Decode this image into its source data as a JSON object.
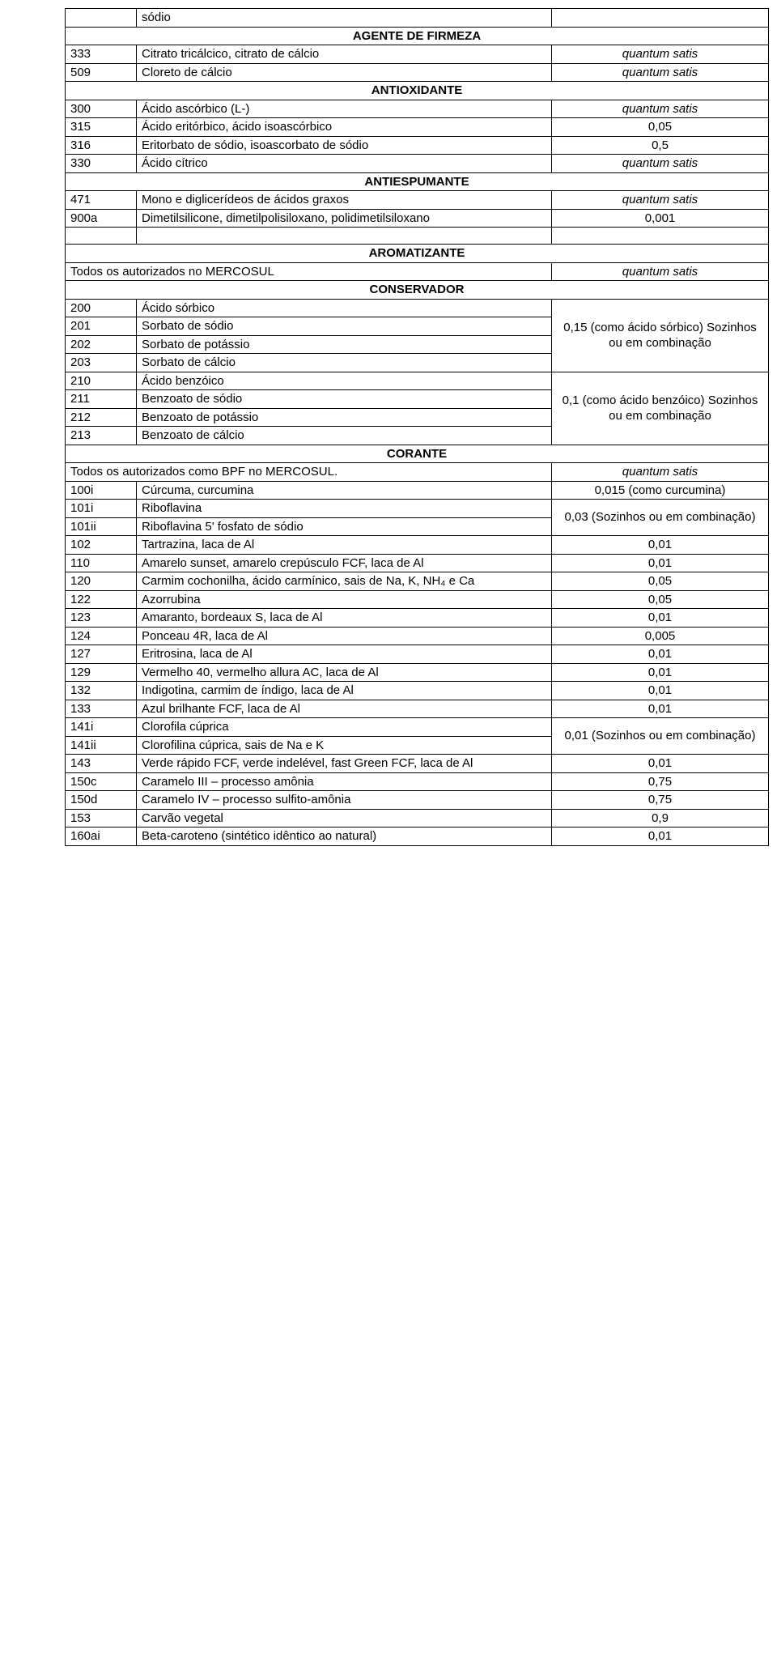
{
  "rows": {
    "r0": {
      "c1": "",
      "c2": "sódio",
      "c3": ""
    },
    "sh1": {
      "label": "AGENTE DE FIRMEZA"
    },
    "r1": {
      "c1": "333",
      "c2": "Citrato tricálcico, citrato de cálcio",
      "c3": "quantum satis"
    },
    "r2": {
      "c1": "509",
      "c2": "Cloreto de cálcio",
      "c3": "quantum satis"
    },
    "sh2": {
      "label": "ANTIOXIDANTE"
    },
    "r3": {
      "c1": "300",
      "c2": "Ácido ascórbico (L-)",
      "c3": "quantum satis"
    },
    "r4": {
      "c1": "315",
      "c2": "Ácido eritórbico, ácido isoascórbico",
      "c3": "0,05"
    },
    "r5": {
      "c1": "316",
      "c2": "Eritorbato de sódio, isoascorbato de sódio",
      "c3": "0,5"
    },
    "r6": {
      "c1": "330",
      "c2": "Ácido cítrico",
      "c3": "quantum satis"
    },
    "sh3": {
      "label": "ANTIESPUMANTE"
    },
    "r7": {
      "c1": "471",
      "c2": "Mono e diglicerídeos de ácidos graxos",
      "c3": "quantum satis"
    },
    "r8": {
      "c1": "900a",
      "c2": "Dimetilsilicone, dimetilpolisiloxano, polidimetilsiloxano",
      "c3": "0,001"
    },
    "sh4": {
      "label": "AROMATIZANTE"
    },
    "r9": {
      "c12": "Todos os autorizados no MERCOSUL",
      "c3": "quantum satis"
    },
    "sh5": {
      "label": "CONSERVADOR"
    },
    "r10": {
      "c1": "200",
      "c2": "Ácido sórbico"
    },
    "r11": {
      "c1": "201",
      "c2": "Sorbato de sódio"
    },
    "r12": {
      "c1": "202",
      "c2": "Sorbato de potássio"
    },
    "r13": {
      "c1": "203",
      "c2": "Sorbato de cálcio"
    },
    "g1": {
      "text": "0,15 (como ácido sórbico) Sozinhos ou em combinação"
    },
    "r14": {
      "c1": "210",
      "c2": "Ácido benzóico"
    },
    "r15": {
      "c1": "211",
      "c2": "Benzoato de sódio"
    },
    "r16": {
      "c1": "212",
      "c2": "Benzoato de potássio"
    },
    "r17": {
      "c1": "213",
      "c2": "Benzoato de cálcio"
    },
    "g2": {
      "text": "0,1 (como ácido benzóico) Sozinhos ou em combinação"
    },
    "sh6": {
      "label": "CORANTE"
    },
    "r18": {
      "c12": "Todos os autorizados como BPF no MERCOSUL.",
      "c3": "quantum satis"
    },
    "r19": {
      "c1": "100i",
      "c2": "Cúrcuma, curcumina",
      "c3": "0,015 (como curcumina)"
    },
    "r20": {
      "c1": "101i",
      "c2": "Riboflavina"
    },
    "r21": {
      "c1": "101ii",
      "c2": "Riboflavina 5' fosfato de sódio"
    },
    "g3": {
      "text": "0,03 (Sozinhos ou em combinação)"
    },
    "r22": {
      "c1": "102",
      "c2": "Tartrazina, laca de Al",
      "c3": "0,01"
    },
    "r23": {
      "c1": "110",
      "c2": "Amarelo sunset, amarelo crepúsculo FCF, laca de Al",
      "c3": "0,01"
    },
    "r24": {
      "c1": "120",
      "c2": "Carmim cochonilha, ácido carmínico, sais de Na, K, NH₄ e Ca",
      "c3": "0,05"
    },
    "r25": {
      "c1": "122",
      "c2": "Azorrubina",
      "c3": "0,05"
    },
    "r26": {
      "c1": "123",
      "c2": "Amaranto, bordeaux S, laca de Al",
      "c3": "0,01"
    },
    "r27": {
      "c1": "124",
      "c2": "Ponceau 4R, laca de Al",
      "c3": "0,005"
    },
    "r28": {
      "c1": "127",
      "c2": "Eritrosina, laca de Al",
      "c3": "0,01"
    },
    "r29": {
      "c1": "129",
      "c2": "Vermelho 40, vermelho allura AC, laca de Al",
      "c3": "0,01"
    },
    "r30": {
      "c1": "132",
      "c2": "Indigotina, carmim de índigo, laca de Al",
      "c3": "0,01"
    },
    "r31": {
      "c1": "133",
      "c2": "Azul brilhante FCF, laca de Al",
      "c3": "0,01"
    },
    "r32": {
      "c1": "141i",
      "c2": "Clorofila cúprica"
    },
    "r33": {
      "c1": "141ii",
      "c2": "Clorofilina cúprica, sais de Na e K"
    },
    "g4": {
      "text": "0,01 (Sozinhos ou em combinação)"
    },
    "r34": {
      "c1": "143",
      "c2": "Verde rápido FCF, verde indelével, fast Green FCF, laca de Al",
      "c3": "0,01"
    },
    "r35": {
      "c1": "150c",
      "c2": "Caramelo III – processo amônia",
      "c3": "0,75"
    },
    "r36": {
      "c1": "150d",
      "c2": "Caramelo IV – processo sulfito-amônia",
      "c3": "0,75"
    },
    "r37": {
      "c1": "153",
      "c2": "Carvão vegetal",
      "c3": "0,9"
    },
    "r38": {
      "c1": "160ai",
      "c2": "Beta-caroteno (sintético idêntico ao natural)",
      "c3": "0,01"
    }
  }
}
